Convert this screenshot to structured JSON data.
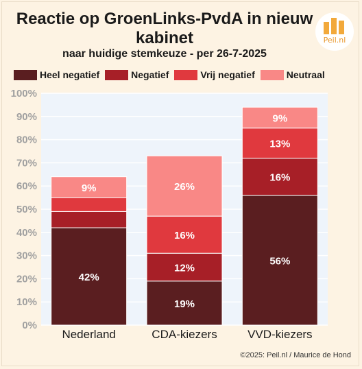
{
  "title": "Reactie op GroenLinks-PvdA in nieuw kabinet",
  "subtitle": "naar huidige stemkeuze - per 26-7-2025",
  "logo_text": "Peil.nl",
  "credit": "©2025: Peil.nl / Maurice de Hond",
  "colors": {
    "background": "#fdf3e3",
    "plot_background": "#eef4fb",
    "grid": "#ffffff"
  },
  "chart_data": {
    "type": "bar",
    "stacked": true,
    "categories": [
      "Nederland",
      "CDA-kiezers",
      "VVD-kiezers"
    ],
    "series": [
      {
        "name": "Heel negatief",
        "color": "#5a1e20",
        "values": [
          42,
          19,
          56
        ],
        "labels": [
          "42%",
          "19%",
          "56%"
        ]
      },
      {
        "name": "Negatief",
        "color": "#a71f27",
        "values": [
          7,
          12,
          16
        ],
        "labels": [
          "",
          "12%",
          "16%"
        ]
      },
      {
        "name": "Vrij negatief",
        "color": "#e0393e",
        "values": [
          6,
          16,
          13
        ],
        "labels": [
          "",
          "16%",
          "13%"
        ]
      },
      {
        "name": "Neutraal",
        "color": "#f98886",
        "values": [
          9,
          26,
          9
        ],
        "labels": [
          "9%",
          "26%",
          "9%"
        ]
      }
    ],
    "ylim": [
      0,
      100
    ],
    "yticks": [
      "0%",
      "10%",
      "20%",
      "30%",
      "40%",
      "50%",
      "60%",
      "70%",
      "80%",
      "90%",
      "100%"
    ],
    "grid": true,
    "legend_position": "top"
  }
}
